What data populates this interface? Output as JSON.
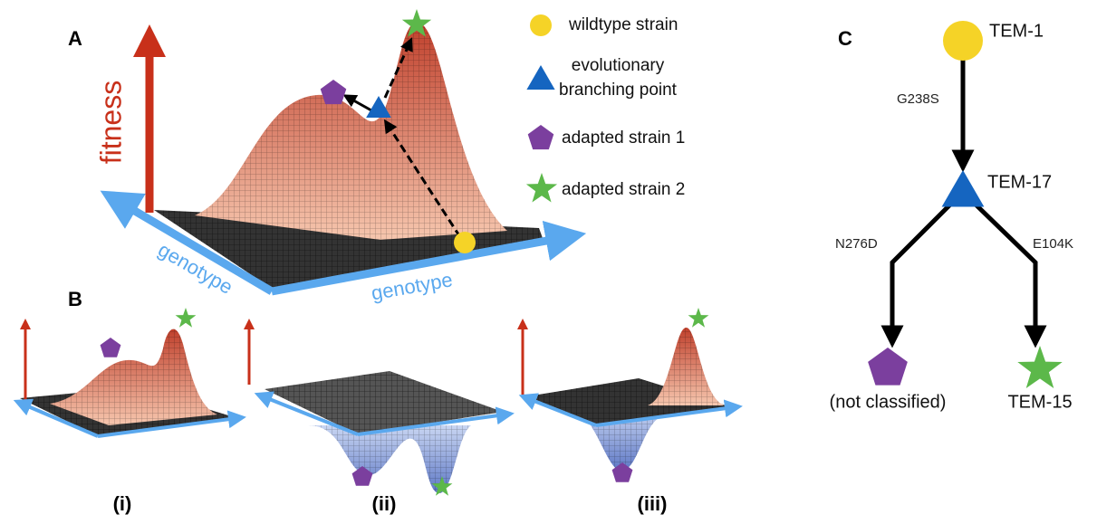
{
  "panel_a": {
    "label": "A",
    "y_axis": "fitness",
    "x_axis_left": "genotype",
    "x_axis_right": "genotype"
  },
  "legend": {
    "wildtype": "wildtype strain",
    "branching": [
      "evolutionary",
      "branching point"
    ],
    "adapted_1": "adapted strain 1",
    "adapted_2": "adapted strain 2"
  },
  "panel_b": {
    "label": "B",
    "subpanels": [
      "(i)",
      "(ii)",
      "(iii)"
    ]
  },
  "panel_c": {
    "label": "C",
    "root": "TEM-1",
    "mutation_1": "G238S",
    "branch_node": "TEM-17",
    "mutation_left": "N276D",
    "mutation_right": "E104K",
    "leaf_left": "(not classified)",
    "leaf_right": "TEM-15"
  }
}
